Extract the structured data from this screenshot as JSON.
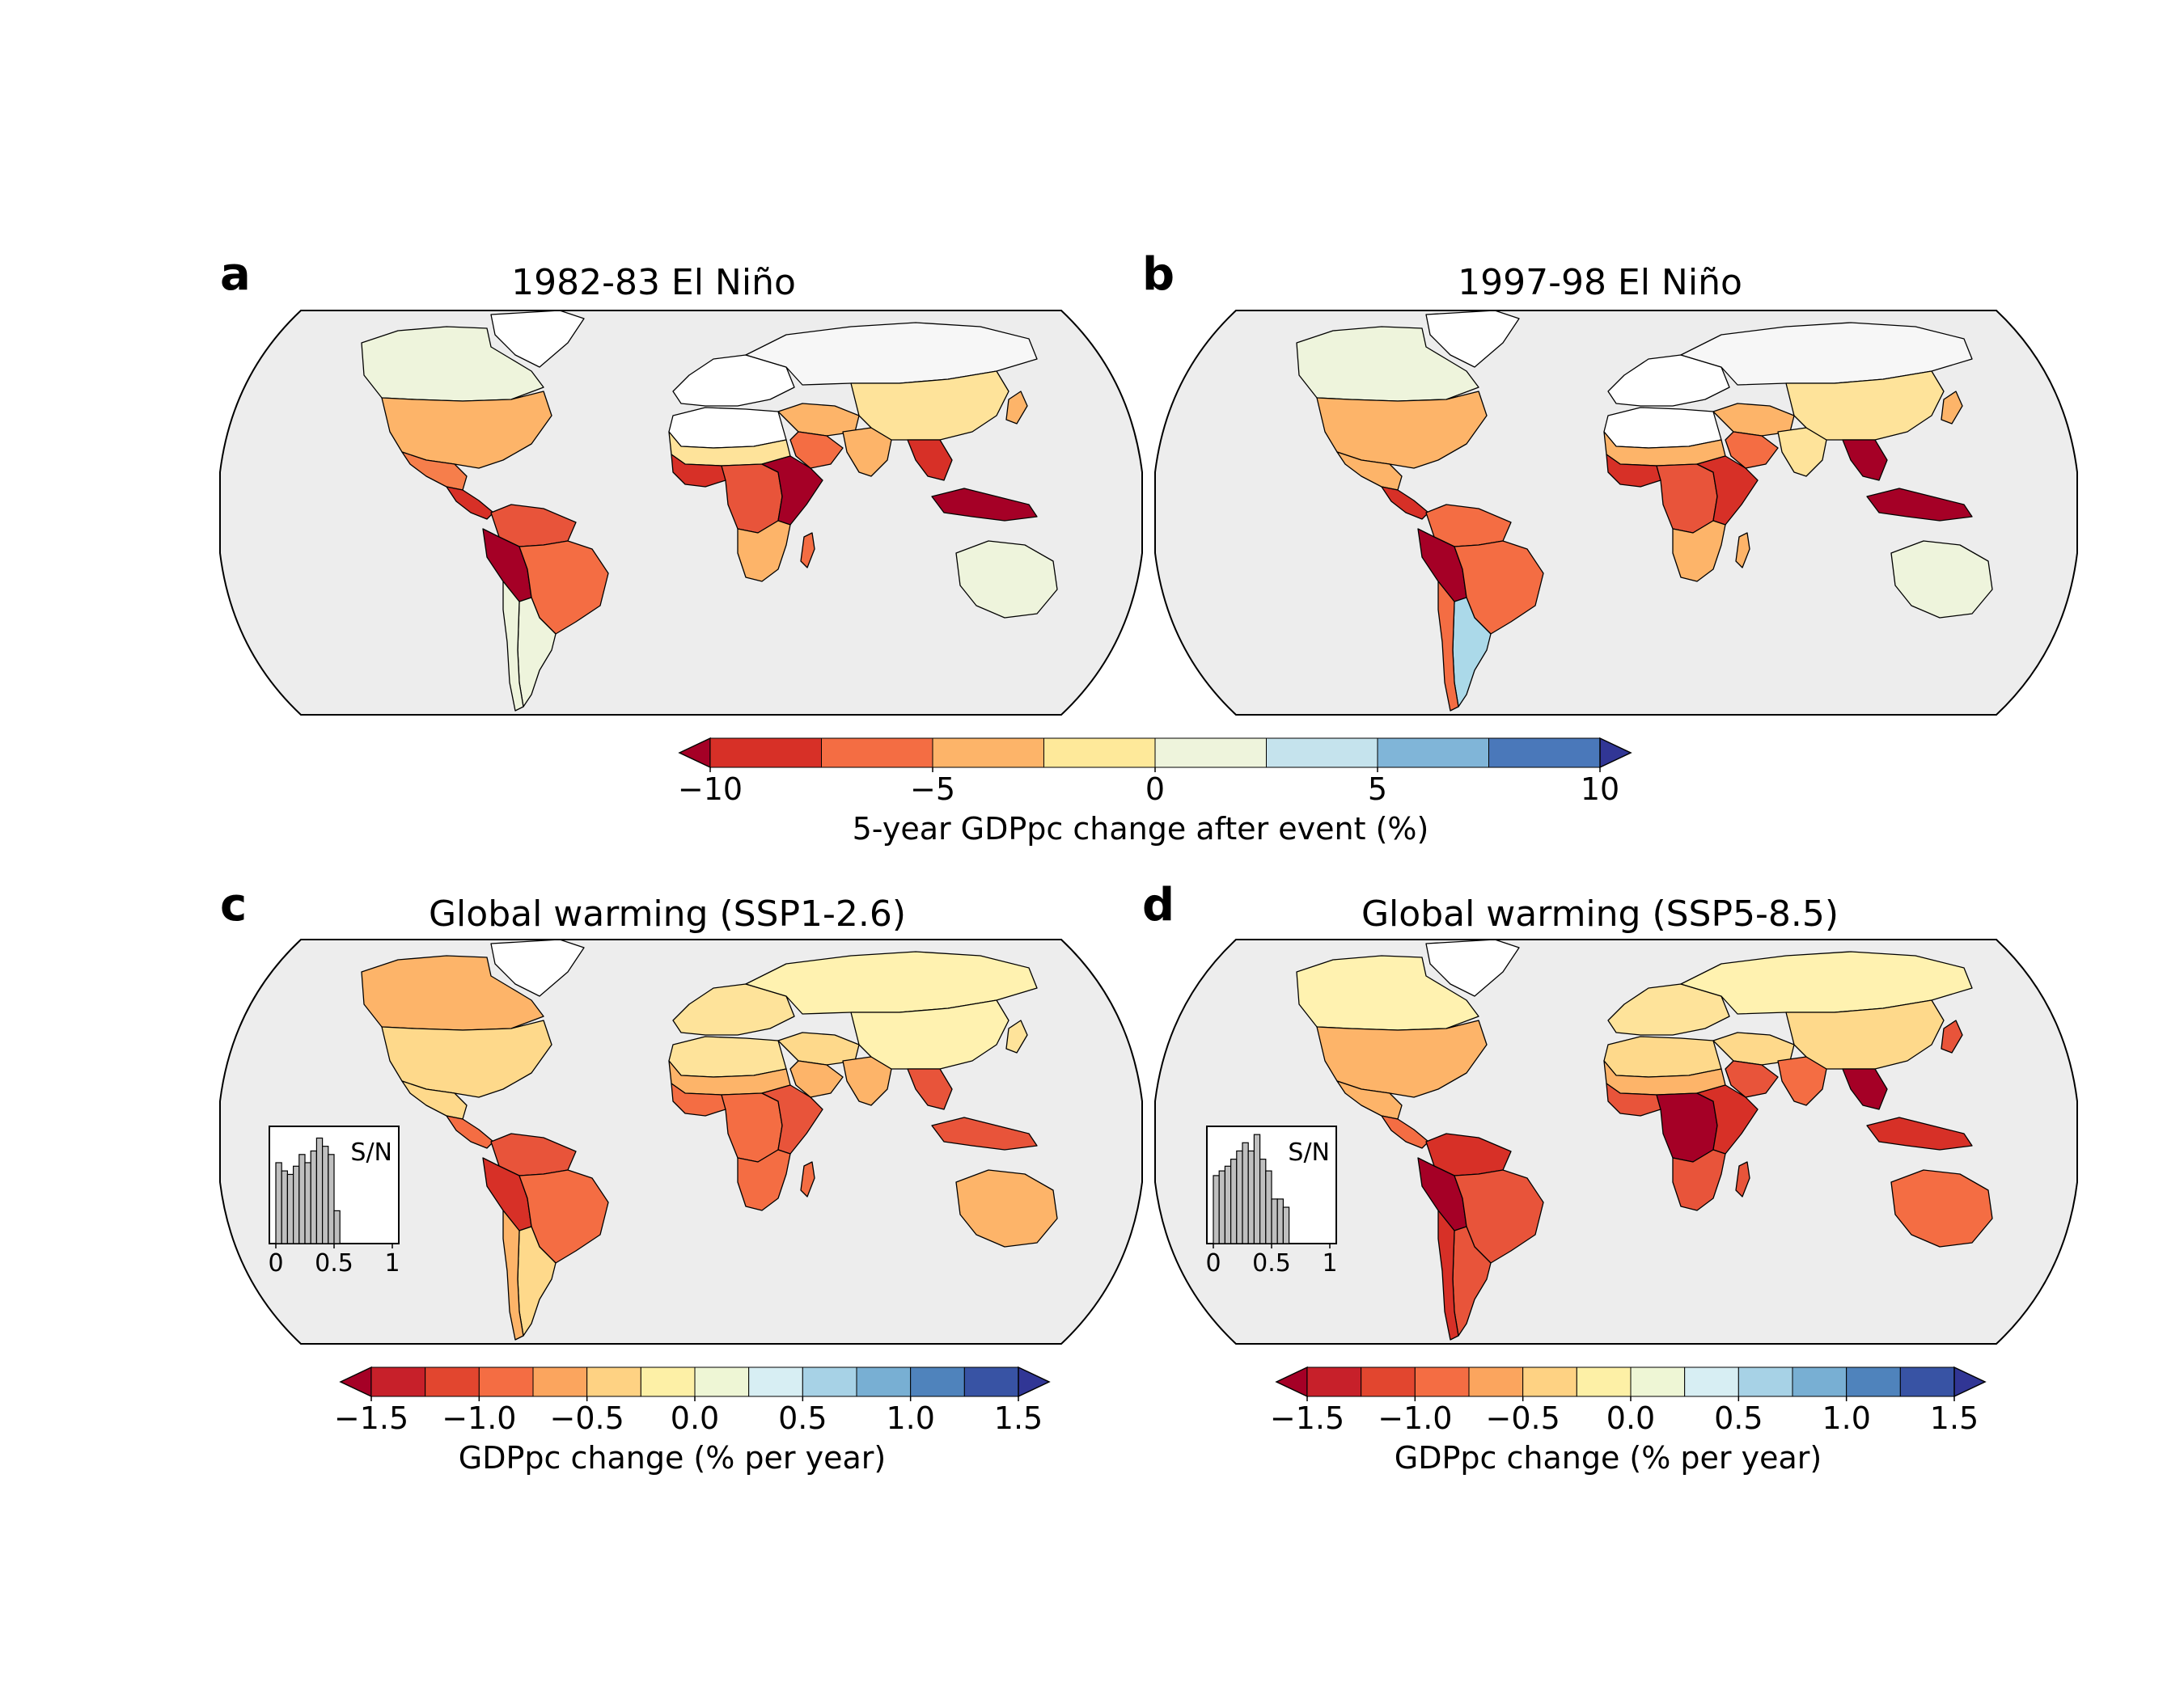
{
  "panels": [
    {
      "letter": "a",
      "title": "1982-83 El Niño",
      "scheme": "elnino82",
      "colors": {
        "americas_north": "#eef4dc",
        "us": "#fdb469",
        "mexico": "#f67e4b",
        "central": "#d73027",
        "northern_sa": "#e8543a",
        "andes": "#a50026",
        "brazil": "#f46d43",
        "argentina": "#eef4dc",
        "chile": "#eef4dc",
        "europe": "#ffffff",
        "russia": "#f7f7f7",
        "n_africa": "#ffffff",
        "sahel": "#fee39a",
        "w_africa": "#d73027",
        "c_africa": "#e8543a",
        "e_africa": "#a50026",
        "s_africa": "#fdb469",
        "madagascar": "#f46d43",
        "mideast": "#fdb469",
        "arabia": "#f46d43",
        "india": "#fdb469",
        "china": "#fee39a",
        "se_asia": "#d73027",
        "indonesia": "#a50026",
        "japan": "#fdb469",
        "australia": "#eef4dc",
        "greenland": "#ffffff"
      }
    },
    {
      "letter": "b",
      "title": "1997-98 El Niño",
      "scheme": "elnino97",
      "colors": {
        "americas_north": "#eef4dc",
        "us": "#fdb469",
        "mexico": "#fdb469",
        "central": "#d73027",
        "northern_sa": "#f46d43",
        "andes": "#a50026",
        "brazil": "#f46d43",
        "argentina": "#abd9e9",
        "chile": "#f46d43",
        "europe": "#ffffff",
        "russia": "#f7f7f7",
        "n_africa": "#ffffff",
        "sahel": "#fdb469",
        "w_africa": "#d73027",
        "c_africa": "#e8543a",
        "e_africa": "#d73027",
        "s_africa": "#fdb469",
        "madagascar": "#fdb469",
        "mideast": "#fdb469",
        "arabia": "#f46d43",
        "india": "#fee39a",
        "china": "#fee39a",
        "se_asia": "#a50026",
        "indonesia": "#a50026",
        "japan": "#fdb469",
        "australia": "#eef4dc",
        "greenland": "#ffffff"
      }
    },
    {
      "letter": "c",
      "title": "Global warming (SSP1-2.6)",
      "scheme": "ssp126",
      "colors": {
        "americas_north": "#fdb469",
        "us": "#fed98b",
        "mexico": "#fed98b",
        "central": "#f46d43",
        "northern_sa": "#e8543a",
        "andes": "#d73027",
        "brazil": "#f46d43",
        "argentina": "#fed98b",
        "chile": "#fdb469",
        "europe": "#fee39a",
        "russia": "#fff2b0",
        "n_africa": "#fee39a",
        "sahel": "#fdb469",
        "w_africa": "#f46d43",
        "c_africa": "#f46d43",
        "e_africa": "#e8543a",
        "s_africa": "#f46d43",
        "madagascar": "#f46d43",
        "mideast": "#fed98b",
        "arabia": "#fdb469",
        "india": "#fdb469",
        "china": "#fff2b0",
        "se_asia": "#e8543a",
        "indonesia": "#e8543a",
        "japan": "#fee39a",
        "australia": "#fdb469",
        "greenland": "#ffffff"
      }
    },
    {
      "letter": "d",
      "title": "Global warming (SSP5-8.5)",
      "scheme": "ssp585",
      "colors": {
        "americas_north": "#fff2b0",
        "us": "#fdb469",
        "mexico": "#fdb469",
        "central": "#f46d43",
        "northern_sa": "#d73027",
        "andes": "#a50026",
        "brazil": "#e8543a",
        "argentina": "#e8543a",
        "chile": "#d73027",
        "europe": "#fee39a",
        "russia": "#fff2b0",
        "n_africa": "#fed98b",
        "sahel": "#fdb469",
        "w_africa": "#e8543a",
        "c_africa": "#a50026",
        "e_africa": "#d73027",
        "s_africa": "#e8543a",
        "madagascar": "#e8543a",
        "mideast": "#fed98b",
        "arabia": "#e8543a",
        "india": "#f46d43",
        "china": "#fed98b",
        "se_asia": "#a50026",
        "indonesia": "#d73027",
        "japan": "#e8543a",
        "australia": "#f46d43",
        "greenland": "#ffffff"
      }
    }
  ],
  "colorbar_top": {
    "label": "5-year GDPpc change after event (%)",
    "tick_labels": [
      "−10",
      "−5",
      "0",
      "5",
      "10"
    ],
    "tick_values": [
      -10,
      -5,
      0,
      5,
      10
    ],
    "min": -10,
    "max": 10,
    "colors": [
      "#d73027",
      "#f46d43",
      "#fdb469",
      "#fee99a",
      "#eef4dc",
      "#c5e3ed",
      "#80b5d8",
      "#4a78ba"
    ],
    "under": "#a50026",
    "over": "#313695"
  },
  "colorbar_bottom": {
    "label": "GDPpc change (% per year)",
    "tick_labels": [
      "−1.5",
      "−1.0",
      "−0.5",
      "0.0",
      "0.5",
      "1.0",
      "1.5"
    ],
    "tick_values": [
      -1.5,
      -1.0,
      -0.5,
      0.0,
      0.5,
      1.0,
      1.5
    ],
    "min": -1.5,
    "max": 1.5,
    "colors": [
      "#c7202a",
      "#e2462f",
      "#f46d43",
      "#fba55e",
      "#fed283",
      "#fdf0a6",
      "#eef6d5",
      "#d7eef3",
      "#a7d2e6",
      "#78afd3",
      "#4f83bc",
      "#3853a4"
    ],
    "under": "#a50026",
    "over": "#313695"
  },
  "insets": [
    {
      "panel": "c",
      "label": "S/N",
      "tick_labels": [
        "0",
        "0.5",
        "1"
      ],
      "xlim": [
        0,
        1
      ],
      "bins": [
        0.0,
        0.05,
        0.1,
        0.15,
        0.2,
        0.25,
        0.3,
        0.35,
        0.4,
        0.45,
        0.5,
        0.55,
        0.6
      ],
      "heights": [
        0.69,
        0.62,
        0.59,
        0.66,
        0.76,
        0.69,
        0.79,
        0.9,
        0.83,
        0.76,
        0.28,
        0.0
      ]
    },
    {
      "panel": "d",
      "label": "S/N",
      "tick_labels": [
        "0",
        "0.5",
        "1"
      ],
      "xlim": [
        0,
        1
      ],
      "bins": [
        0.0,
        0.05,
        0.1,
        0.15,
        0.2,
        0.25,
        0.3,
        0.35,
        0.4,
        0.45,
        0.5,
        0.55,
        0.6,
        0.65,
        0.7,
        0.75
      ],
      "heights": [
        0.58,
        0.62,
        0.66,
        0.72,
        0.79,
        0.86,
        0.79,
        0.93,
        0.72,
        0.62,
        0.38,
        0.38,
        0.31,
        0.0,
        0.0
      ]
    }
  ],
  "style": {
    "ocean": "#ededed",
    "coast": "#000000",
    "histogram_bar": "#bfbfbf"
  }
}
